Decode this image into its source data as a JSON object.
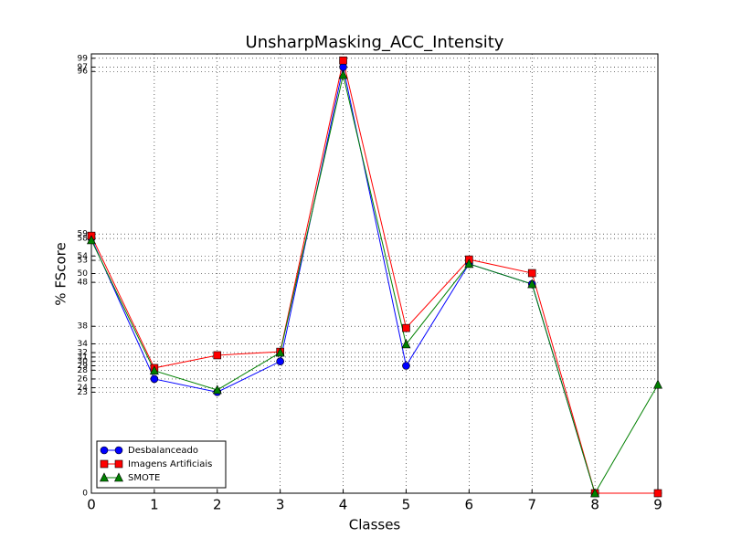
{
  "chart_data": {
    "type": "line",
    "title": "UnsharpMasking_ACC_Intensity",
    "x_label": "Classes",
    "y_label": "% FScore",
    "x": [
      0,
      1,
      2,
      3,
      4,
      5,
      6,
      7,
      8,
      9
    ],
    "series": [
      {
        "name": "Desbalanceado",
        "color": "#0000ff",
        "marker": "circle",
        "values": [
          58,
          26,
          23,
          30,
          97,
          29,
          52.2,
          47.6,
          0,
          0
        ]
      },
      {
        "name": "Imagens Artificiais",
        "color": "#ff0000",
        "marker": "square",
        "values": [
          58.6,
          28.5,
          31.4,
          32.2,
          98.5,
          37.6,
          53.2,
          50.1,
          0,
          0
        ]
      },
      {
        "name": "SMOTE",
        "color": "#008000",
        "marker": "triangle",
        "values": [
          57.6,
          27.9,
          23.5,
          32,
          95.2,
          33.9,
          52.2,
          47.6,
          0,
          24.7
        ]
      }
    ],
    "xlim": [
      0,
      9
    ],
    "xticks": [
      0,
      1,
      2,
      3,
      4,
      5,
      6,
      7,
      8,
      9
    ],
    "ylim": [
      0,
      100
    ],
    "yticks": [
      0,
      23,
      24,
      26,
      28,
      29,
      30,
      31,
      32,
      34,
      38,
      48,
      50,
      53,
      54,
      58,
      59,
      96,
      97,
      99
    ],
    "grid": true,
    "legend": "lower left"
  }
}
